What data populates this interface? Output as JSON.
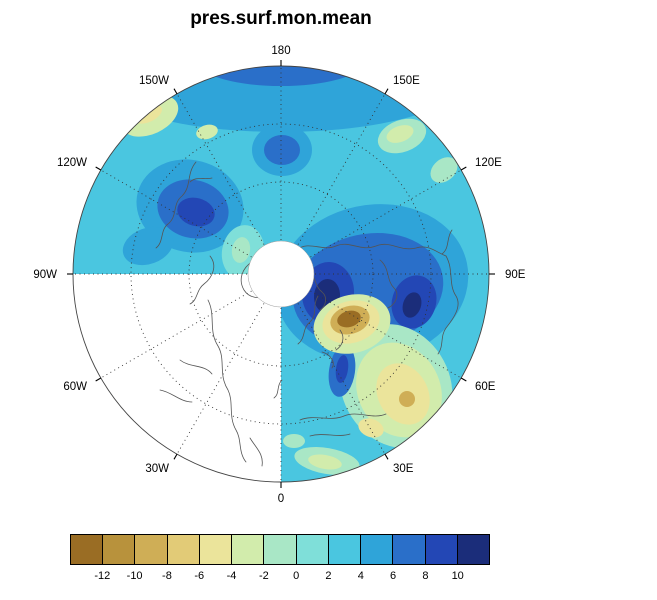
{
  "title": "pres.surf.mon.mean",
  "map": {
    "lon_labels": [
      {
        "text": "180",
        "angle": 270
      },
      {
        "text": "150E",
        "angle": 300
      },
      {
        "text": "120E",
        "angle": 330
      },
      {
        "text": "90E",
        "angle": 0
      },
      {
        "text": "60E",
        "angle": 30
      },
      {
        "text": "30E",
        "angle": 60
      },
      {
        "text": "0",
        "angle": 90
      },
      {
        "text": "30W",
        "angle": 120
      },
      {
        "text": "60W",
        "angle": 150
      },
      {
        "text": "90W",
        "angle": 180
      },
      {
        "text": "120W",
        "angle": 210
      },
      {
        "text": "150W",
        "angle": 240
      }
    ]
  },
  "colorbar": {
    "tick_labels": [
      "-12",
      "-10",
      "-8",
      "-6",
      "-4",
      "-2",
      "0",
      "2",
      "4",
      "6",
      "8",
      "10"
    ],
    "colors": [
      "#9a6d24",
      "#b8923c",
      "#cfae56",
      "#e2cb77",
      "#ebe49b",
      "#d2ecac",
      "#a9e7c6",
      "#7fdfd9",
      "#4ac6e0",
      "#2fa4d9",
      "#2a6fc9",
      "#2347b5",
      "#1b2d7a"
    ]
  },
  "chart_data": {
    "type": "heatmap",
    "variant": "filled-contour polar stereographic map",
    "title": "pres.surf.mon.mean",
    "hemisphere": "northern",
    "longitude_ring_labels": [
      "180",
      "150E",
      "120E",
      "90E",
      "60E",
      "30E",
      "0",
      "30W",
      "60W",
      "90W",
      "120W",
      "150W"
    ],
    "contour_level_boundaries": [
      -12,
      -10,
      -8,
      -6,
      -4,
      -2,
      0,
      2,
      4,
      6,
      8,
      10
    ],
    "n_color_bands": 13,
    "palette_hex": [
      "#9a6d24",
      "#b8923c",
      "#cfae56",
      "#e2cb77",
      "#ebe49b",
      "#d2ecac",
      "#a9e7c6",
      "#7fdfd9",
      "#4ac6e0",
      "#2fa4d9",
      "#2a6fc9",
      "#2347b5",
      "#1b2d7a"
    ],
    "legend_position": "horizontal colorbar at bottom",
    "graticule": "dotted meridians every 30 degrees and dotted latitude circles",
    "masked_regions": [
      "longitude sector from 0 to 90W (lower-left quadrant) shown white with coastlines only",
      "small polar cap circle at map center shown white"
    ],
    "qualitative_features": [
      {
        "area": "just east/southeast of the pole (Urals / western Siberia)",
        "band": "-12 and below up to -6",
        "appearance": "dark brown core with tan and pale-yellow halo"
      },
      {
        "area": "around the brown core over northern Russia and eastern Europe",
        "band": "+6 to above +10",
        "appearance": "large dark blue region with two navy cores"
      },
      {
        "area": "Alaska / northwestern North America",
        "band": "+6 to +10",
        "appearance": "dark blue blob with darker core"
      },
      {
        "area": "high latitude near the 180 meridian",
        "band": "+4 to +8",
        "appearance": "small round blue blob"
      },
      {
        "area": "southwest Asia / Middle East toward 30E-60E rim",
        "band": "-6 to -2",
        "appearance": "yellow-green patch with small tan spots"
      },
      {
        "area": "rim band near 150W-180-150E and patches near 30E at bottom",
        "band": "-4 to 0",
        "appearance": "green patches embedded in darker cyan-blue rim band"
      },
      {
        "area": "most of the remaining hemisphere",
        "band": "0 to +4",
        "appearance": "uniform cyan"
      }
    ]
  }
}
